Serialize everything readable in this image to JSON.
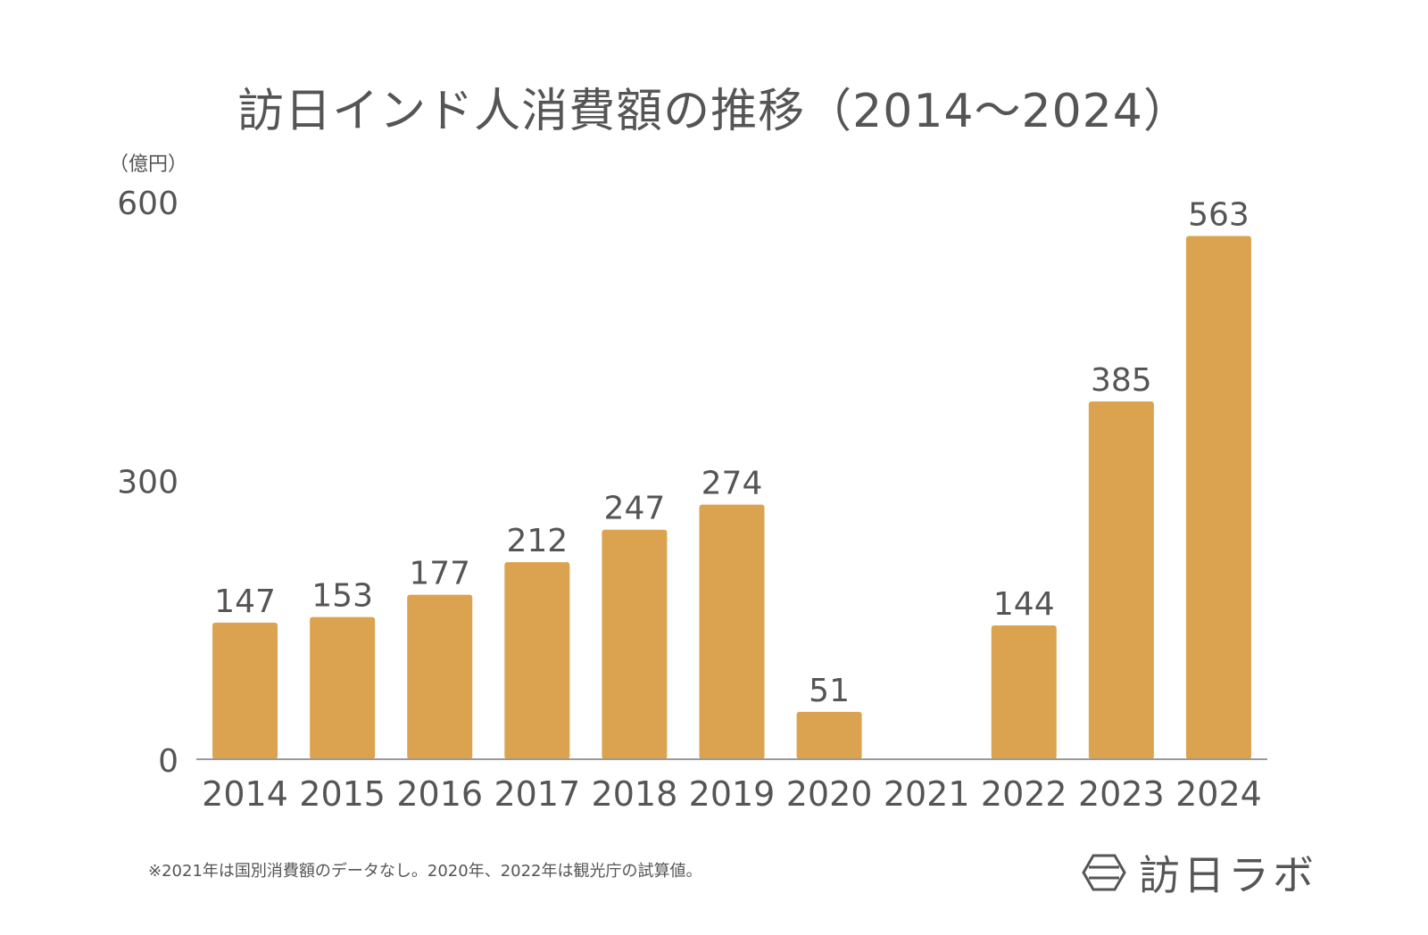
{
  "title": "訪日インド人消費額の推移（2014〜2024）",
  "unit_label": "（億円）",
  "note": "※2021年は国別消費額のデータなし。2020年、2022年は観光庁の試算値。",
  "logo": {
    "text": "訪日ラボ",
    "icon": "hexagon-logo-icon"
  },
  "colors": {
    "bar": "#DBA350",
    "axis": "#999999",
    "text": "#555555"
  },
  "chart_data": {
    "type": "bar",
    "categories": [
      "2014",
      "2015",
      "2016",
      "2017",
      "2018",
      "2019",
      "2020",
      "2021",
      "2022",
      "2023",
      "2024"
    ],
    "values": [
      147,
      153,
      177,
      212,
      247,
      274,
      51,
      null,
      144,
      385,
      563
    ],
    "value_labels": [
      "147",
      "153",
      "177",
      "212",
      "247",
      "274",
      "51",
      "",
      "144",
      "385",
      "563"
    ],
    "y_ticks": [
      "0",
      "300",
      "600"
    ],
    "ylim": [
      0,
      600
    ],
    "grid": false,
    "legend": "none"
  }
}
